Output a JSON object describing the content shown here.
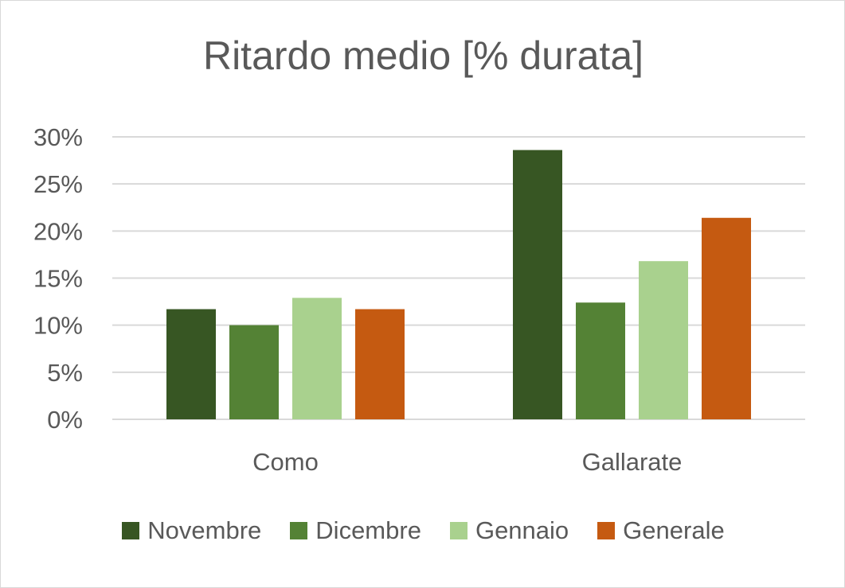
{
  "chart_data": {
    "type": "bar",
    "title": "Ritardo medio [% durata]",
    "categories": [
      "Como",
      "Gallarate"
    ],
    "series": [
      {
        "name": "Novembre",
        "color": "#375623",
        "values": [
          0.117,
          0.286
        ]
      },
      {
        "name": "Dicembre",
        "color": "#548235",
        "values": [
          0.1,
          0.124
        ]
      },
      {
        "name": "Gennaio",
        "color": "#a9d18e",
        "values": [
          0.129,
          0.168
        ]
      },
      {
        "name": "Generale",
        "color": "#c55a11",
        "values": [
          0.117,
          0.214
        ]
      }
    ],
    "yticks": [
      "0%",
      "5%",
      "10%",
      "15%",
      "20%",
      "25%",
      "30%"
    ],
    "ylim": [
      0,
      0.3
    ],
    "grid": true,
    "legend_position": "bottom"
  }
}
